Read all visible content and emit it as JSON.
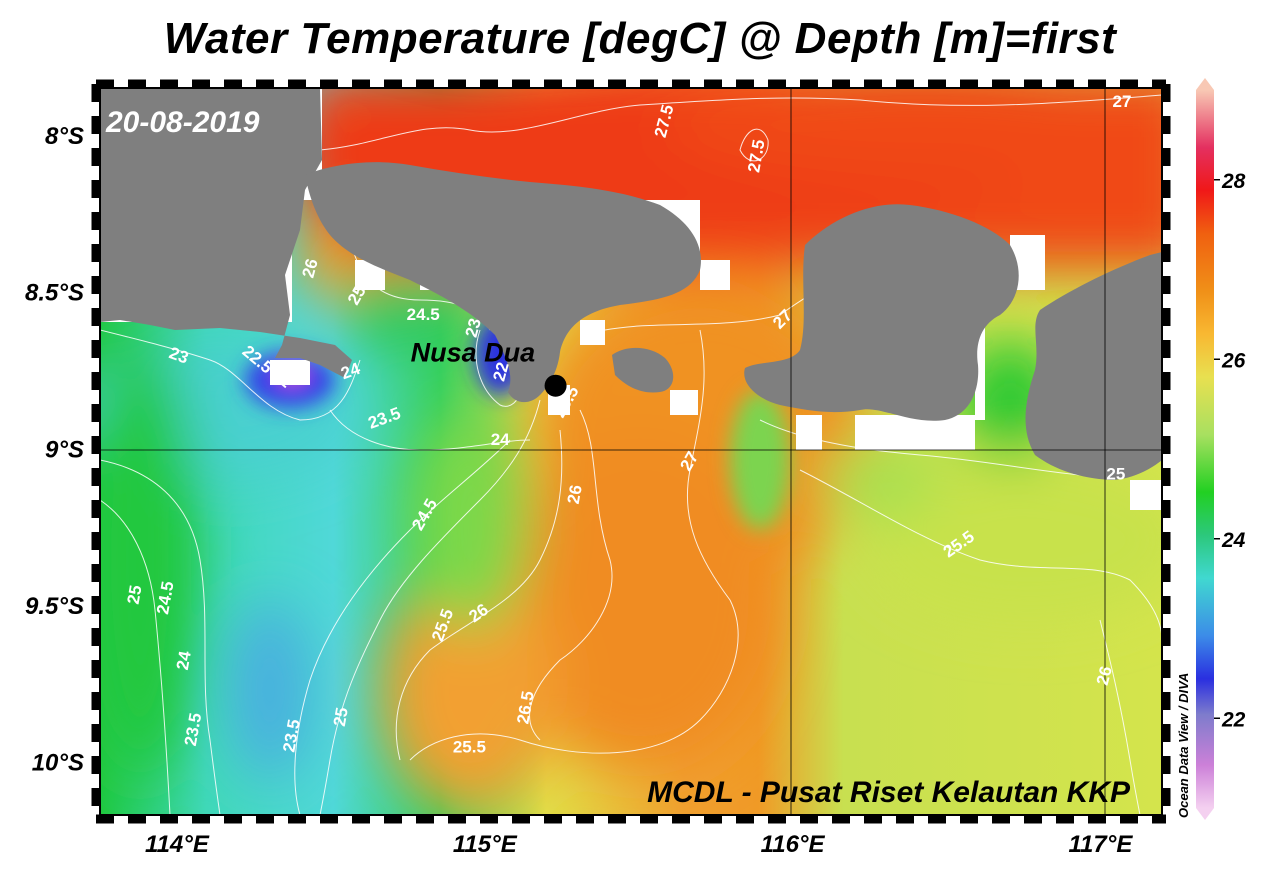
{
  "title": "Water Temperature [degC] @ Depth [m]=first",
  "date": "20-08-2019",
  "credit": "MCDL - Pusat Riset Kelautan KKP",
  "software": "Ocean Data View / DIVA",
  "station": {
    "name": "Nusa Dua",
    "lon": 115.23,
    "lat": -8.8
  },
  "axes": {
    "lon_range": [
      113.75,
      117.2
    ],
    "lat_range": [
      -10.17,
      -7.85
    ],
    "lat_ticks": [
      {
        "value": -8.0,
        "label": "8°S"
      },
      {
        "value": -8.5,
        "label": "8.5°S"
      },
      {
        "value": -9.0,
        "label": "9°S"
      },
      {
        "value": -9.5,
        "label": "9.5°S"
      },
      {
        "value": -10.0,
        "label": "10°S"
      }
    ],
    "lon_ticks": [
      {
        "value": 114,
        "label": "114°E"
      },
      {
        "value": 115,
        "label": "115°E"
      },
      {
        "value": 116,
        "label": "116°E"
      },
      {
        "value": 117,
        "label": "117°E"
      }
    ]
  },
  "colorbar": {
    "range": [
      21,
      29
    ],
    "ticks": [
      {
        "value": 22,
        "label": "22"
      },
      {
        "value": 24,
        "label": "24"
      },
      {
        "value": 26,
        "label": "26"
      },
      {
        "value": 28,
        "label": "28"
      }
    ]
  },
  "contour_labels": [
    {
      "text": "27",
      "lon": 117.07,
      "lat": -7.91
    },
    {
      "text": "27.5",
      "lon": 115.6,
      "lat": -7.96,
      "rot": -75
    },
    {
      "text": "27.5",
      "lon": 115.9,
      "lat": -8.07,
      "rot": -80
    },
    {
      "text": "26",
      "lon": 114.45,
      "lat": -8.43,
      "rot": -75
    },
    {
      "text": "25",
      "lon": 114.6,
      "lat": -8.52,
      "rot": -60
    },
    {
      "text": "24.5",
      "lon": 114.8,
      "lat": -8.59
    },
    {
      "text": "23",
      "lon": 114.98,
      "lat": -8.62,
      "rot": -75
    },
    {
      "text": "22",
      "lon": 115.07,
      "lat": -8.76,
      "rot": -75
    },
    {
      "text": "22.5",
      "lon": 114.25,
      "lat": -8.73,
      "rot": 40
    },
    {
      "text": "22",
      "lon": 114.33,
      "lat": -8.79,
      "rot": 40
    },
    {
      "text": "23",
      "lon": 114.0,
      "lat": -8.72,
      "rot": 20
    },
    {
      "text": "24",
      "lon": 114.57,
      "lat": -8.77,
      "rot": -20
    },
    {
      "text": "23.5",
      "lon": 114.68,
      "lat": -8.92,
      "rot": -20
    },
    {
      "text": "24",
      "lon": 115.05,
      "lat": -8.99
    },
    {
      "text": "26.5",
      "lon": 115.28,
      "lat": -8.86,
      "rot": -60
    },
    {
      "text": "27",
      "lon": 115.98,
      "lat": -8.6,
      "rot": -45
    },
    {
      "text": "27",
      "lon": 115.68,
      "lat": -9.05,
      "rot": -60
    },
    {
      "text": "26",
      "lon": 115.31,
      "lat": -9.15,
      "rot": -80
    },
    {
      "text": "24.5",
      "lon": 114.82,
      "lat": -9.22,
      "rot": -60
    },
    {
      "text": "25",
      "lon": 117.05,
      "lat": -9.1
    },
    {
      "text": "25.5",
      "lon": 116.55,
      "lat": -9.32,
      "rot": -35
    },
    {
      "text": "25",
      "lon": 113.88,
      "lat": -9.47,
      "rot": -80
    },
    {
      "text": "24.5",
      "lon": 113.98,
      "lat": -9.48,
      "rot": -80
    },
    {
      "text": "24",
      "lon": 114.04,
      "lat": -9.68,
      "rot": -80
    },
    {
      "text": "25.5",
      "lon": 114.88,
      "lat": -9.57,
      "rot": -70
    },
    {
      "text": "26",
      "lon": 114.99,
      "lat": -9.54,
      "rot": -35
    },
    {
      "text": "26.5",
      "lon": 115.15,
      "lat": -9.83,
      "rot": -80
    },
    {
      "text": "25",
      "lon": 114.55,
      "lat": -9.86,
      "rot": -80
    },
    {
      "text": "23.5",
      "lon": 114.07,
      "lat": -9.9,
      "rot": -80
    },
    {
      "text": "23.5",
      "lon": 114.39,
      "lat": -9.92,
      "rot": -80
    },
    {
      "text": "25.5",
      "lon": 114.95,
      "lat": -9.97
    },
    {
      "text": "26",
      "lon": 117.03,
      "lat": -9.73,
      "rot": -75
    }
  ]
}
